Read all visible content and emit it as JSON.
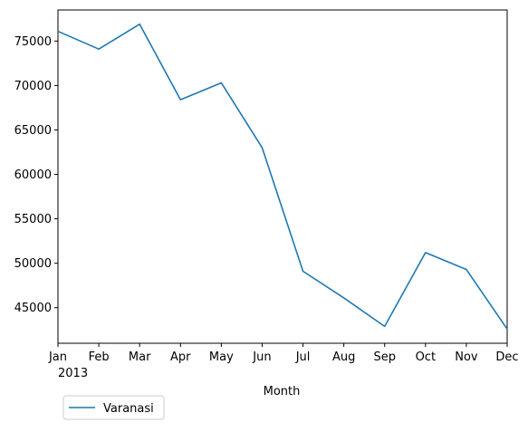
{
  "chart_data": {
    "type": "line",
    "x_ticks": [
      "Jan",
      "Feb",
      "Mar",
      "Apr",
      "May",
      "Jun",
      "Jul",
      "Aug",
      "Sep",
      "Oct",
      "Nov",
      "Dec"
    ],
    "x_year_label": "2013",
    "xlabel": "Month",
    "ylabel": "",
    "ylim": [
      41000,
      78500
    ],
    "y_ticks": [
      45000,
      50000,
      55000,
      60000,
      65000,
      70000,
      75000
    ],
    "series": [
      {
        "name": "Varanasi",
        "color": "#1f77b4",
        "values": [
          76100,
          74100,
          76900,
          68400,
          70300,
          63000,
          49100,
          46100,
          42900,
          51200,
          49300,
          42600
        ]
      }
    ],
    "legend": {
      "placement": "below-left"
    },
    "grid": false
  }
}
